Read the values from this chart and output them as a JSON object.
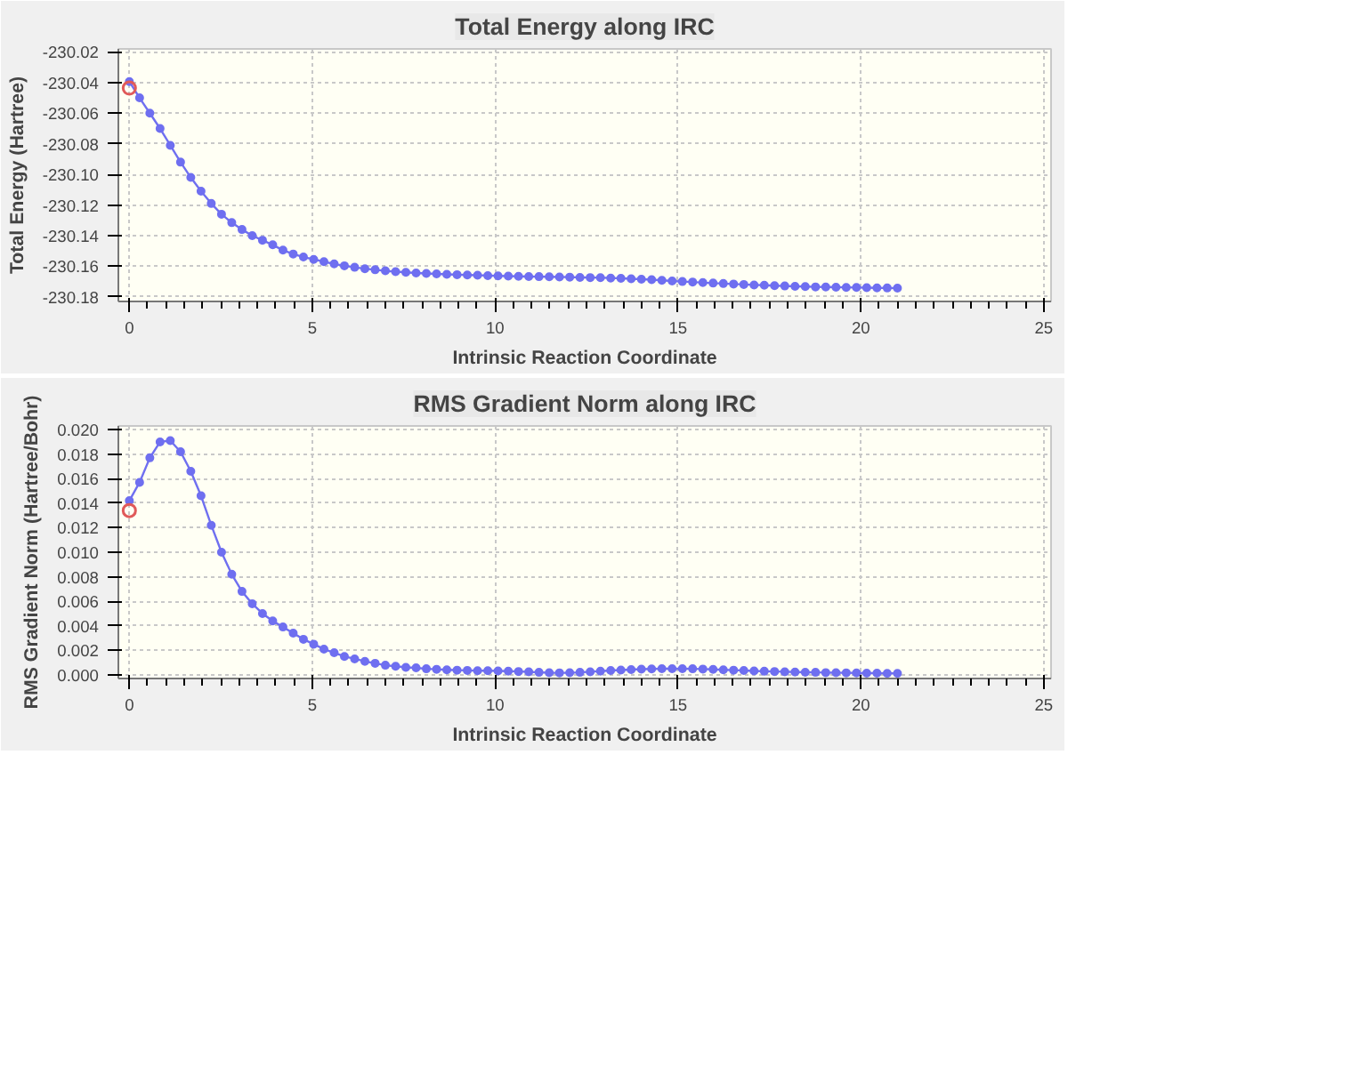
{
  "chart_data": [
    {
      "type": "line",
      "title": "Total Energy along IRC",
      "xlabel": "Intrinsic Reaction Coordinate",
      "ylabel": "Total Energy (Hartree)",
      "x": [
        0,
        0.28,
        0.56,
        0.84,
        1.12,
        1.4,
        1.68,
        1.96,
        2.24,
        2.52,
        2.8,
        3.08,
        3.36,
        3.64,
        3.92,
        4.2,
        4.48,
        4.76,
        5.04,
        5.32,
        5.6,
        5.88,
        6.16,
        6.44,
        6.72,
        7.0,
        7.28,
        7.56,
        7.84,
        8.12,
        8.4,
        8.68,
        8.96,
        9.24,
        9.52,
        9.8,
        10.08,
        10.36,
        10.64,
        10.92,
        11.2,
        11.48,
        11.76,
        12.04,
        12.32,
        12.6,
        12.88,
        13.16,
        13.44,
        13.72,
        14.0,
        14.28,
        14.56,
        14.84,
        15.12,
        15.4,
        15.68,
        15.96,
        16.24,
        16.52,
        16.8,
        17.08,
        17.36,
        17.64,
        17.92,
        18.2,
        18.48,
        18.76,
        19.04,
        19.32,
        19.6,
        19.88,
        20.16,
        20.44,
        20.72,
        21.0
      ],
      "series": [
        {
          "color": "#6f6ff0",
          "values": [
            -230.0393,
            -230.05,
            -230.06,
            -230.07,
            -230.081,
            -230.092,
            -230.102,
            -230.111,
            -230.119,
            -230.126,
            -230.1315,
            -230.136,
            -230.14,
            -230.143,
            -230.146,
            -230.1495,
            -230.152,
            -230.154,
            -230.1555,
            -230.157,
            -230.1585,
            -230.1597,
            -230.1607,
            -230.1616,
            -230.1623,
            -230.163,
            -230.1635,
            -230.164,
            -230.1644,
            -230.1647,
            -230.165,
            -230.1653,
            -230.1655,
            -230.1657,
            -230.1659,
            -230.1661,
            -230.1663,
            -230.1664,
            -230.1666,
            -230.1667,
            -230.1668,
            -230.1669,
            -230.167,
            -230.1671,
            -230.1673,
            -230.1674,
            -230.1675,
            -230.1677,
            -230.1679,
            -230.1682,
            -230.1685,
            -230.1688,
            -230.1692,
            -230.1696,
            -230.17,
            -230.1703,
            -230.1707,
            -230.171,
            -230.1713,
            -230.1716,
            -230.1719,
            -230.1722,
            -230.1724,
            -230.1727,
            -230.1729,
            -230.1731,
            -230.1733,
            -230.1735,
            -230.1736,
            -230.1737,
            -230.1738,
            -230.1739,
            -230.174,
            -230.1741,
            -230.1742,
            -230.1743
          ]
        },
        {
          "type": "scatter",
          "color": "#e05a5a",
          "x": [
            0
          ],
          "values": [
            -230.0436
          ]
        }
      ],
      "xlim": [
        -0.3,
        25.2
      ],
      "ylim": [
        -230.183,
        -230.018
      ],
      "xticks": [
        0,
        5,
        10,
        15,
        20,
        25
      ],
      "yticks": [
        {
          "value": -230.18,
          "label": "-230.18"
        },
        {
          "value": -230.16,
          "label": "-230.16"
        },
        {
          "value": -230.14,
          "label": "-230.14"
        },
        {
          "value": -230.12,
          "label": "-230.12"
        },
        {
          "value": -230.1,
          "label": "-230.10"
        },
        {
          "value": -230.08,
          "label": "-230.08"
        },
        {
          "value": -230.06,
          "label": "-230.06"
        },
        {
          "value": -230.04,
          "label": "-230.04"
        },
        {
          "value": -230.02,
          "label": "-230.02"
        }
      ],
      "grid": true,
      "marker": "circle"
    },
    {
      "type": "line",
      "title": "RMS Gradient Norm along IRC",
      "xlabel": "Intrinsic Reaction Coordinate",
      "ylabel": "RMS Gradient Norm (Hartree/Bohr)",
      "x": [
        0,
        0.28,
        0.56,
        0.84,
        1.12,
        1.4,
        1.68,
        1.96,
        2.24,
        2.52,
        2.8,
        3.08,
        3.36,
        3.64,
        3.92,
        4.2,
        4.48,
        4.76,
        5.04,
        5.32,
        5.6,
        5.88,
        6.16,
        6.44,
        6.72,
        7.0,
        7.28,
        7.56,
        7.84,
        8.12,
        8.4,
        8.68,
        8.96,
        9.24,
        9.52,
        9.8,
        10.08,
        10.36,
        10.64,
        10.92,
        11.2,
        11.48,
        11.76,
        12.04,
        12.32,
        12.6,
        12.88,
        13.16,
        13.44,
        13.72,
        14.0,
        14.28,
        14.56,
        14.84,
        15.12,
        15.4,
        15.68,
        15.96,
        16.24,
        16.52,
        16.8,
        17.08,
        17.36,
        17.64,
        17.92,
        18.2,
        18.48,
        18.76,
        19.04,
        19.32,
        19.6,
        19.88,
        20.16,
        20.44,
        20.72,
        21.0
      ],
      "series": [
        {
          "color": "#6f6ff0",
          "values": [
            0.0142,
            0.0157,
            0.0177,
            0.019,
            0.0191,
            0.0182,
            0.0166,
            0.0146,
            0.0122,
            0.01,
            0.0082,
            0.0068,
            0.0058,
            0.005,
            0.0044,
            0.0039,
            0.0034,
            0.0029,
            0.0025,
            0.0021,
            0.0018,
            0.0015,
            0.0013,
            0.0011,
            0.00094,
            0.00078,
            0.0007,
            0.00061,
            0.00057,
            0.00049,
            0.00045,
            0.00041,
            0.00038,
            0.00036,
            0.00034,
            0.00033,
            0.00032,
            0.0003,
            0.00027,
            0.00024,
            0.0002,
            0.00017,
            0.00016,
            0.00017,
            0.0002,
            0.00025,
            0.0003,
            0.00035,
            0.00039,
            0.00043,
            0.00046,
            0.00048,
            0.0005,
            0.0005,
            0.0005,
            0.00049,
            0.00047,
            0.00044,
            0.00041,
            0.00038,
            0.00035,
            0.00032,
            0.00029,
            0.00027,
            0.00025,
            0.00023,
            0.00021,
            0.0002,
            0.00018,
            0.00017,
            0.00016,
            0.00015,
            0.00014,
            0.00013,
            0.00012,
            0.00012
          ]
        },
        {
          "type": "scatter",
          "color": "#e05a5a",
          "x": [
            0
          ],
          "values": [
            0.0134
          ]
        }
      ],
      "xlim": [
        -0.3,
        25.2
      ],
      "ylim": [
        -0.0003,
        0.0203
      ],
      "xticks": [
        0,
        5,
        10,
        15,
        20,
        25
      ],
      "yticks": [
        {
          "value": 0,
          "label": "0.000"
        },
        {
          "value": 0.002,
          "label": "0.002"
        },
        {
          "value": 0.004,
          "label": "0.004"
        },
        {
          "value": 0.006,
          "label": "0.006"
        },
        {
          "value": 0.008,
          "label": "0.008"
        },
        {
          "value": 0.01,
          "label": "0.010"
        },
        {
          "value": 0.012,
          "label": "0.012"
        },
        {
          "value": 0.014,
          "label": "0.014"
        },
        {
          "value": 0.016,
          "label": "0.016"
        },
        {
          "value": 0.018,
          "label": "0.018"
        },
        {
          "value": 0.02,
          "label": "0.020"
        }
      ],
      "grid": true,
      "marker": "circle"
    }
  ]
}
